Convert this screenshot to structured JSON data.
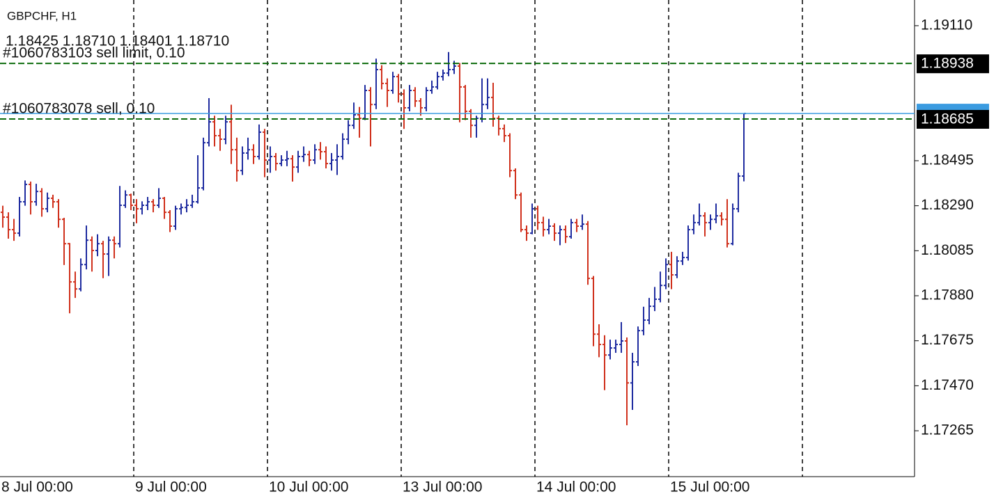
{
  "chart_data": {
    "type": "ohlc",
    "title": "GBPCHF, H1",
    "subtitle": "1.18425 1.18710 1.18401 1.18710",
    "up_color": "#1f2ca0",
    "down_color": "#d0301c",
    "bid_color": "#3b9be0",
    "order_color": "#0b6b0b",
    "ylim": [
      1.17056,
      1.19227
    ],
    "yticks": [
      {
        "value": 1.1911,
        "label": "1.19110"
      },
      1.18495,
      {
        "value": 1.1829,
        "label": "1.18290"
      },
      1.18085,
      {
        "value": 1.1788,
        "label": "1.17880"
      },
      1.17675,
      {
        "value": 1.1747,
        "label": "1.17470"
      },
      1.17265
    ],
    "orders": [
      {
        "label": "#1060783103 sell limit, 0.10",
        "price": 1.18938
      },
      {
        "label": "#1060783078 sell, 0.10",
        "price": 1.18685
      }
    ],
    "categories": [
      "8 Jul 00:00",
      null,
      null,
      null,
      null,
      null,
      null,
      null,
      null,
      null,
      null,
      null,
      null,
      null,
      null,
      null,
      null,
      null,
      null,
      null,
      null,
      null,
      null,
      null,
      "9 Jul 00:00",
      null,
      null,
      null,
      null,
      null,
      null,
      null,
      null,
      null,
      null,
      null,
      null,
      null,
      null,
      null,
      null,
      null,
      null,
      null,
      null,
      null,
      null,
      null,
      "10 Jul 00:00",
      null,
      null,
      null,
      null,
      null,
      null,
      null,
      null,
      null,
      null,
      null,
      null,
      null,
      null,
      null,
      null,
      null,
      null,
      null,
      null,
      null,
      null,
      null,
      "13 Jul 00:00",
      null,
      null,
      null,
      null,
      null,
      null,
      null,
      null,
      null,
      null,
      null,
      null,
      null,
      null,
      null,
      null,
      null,
      null,
      null,
      null,
      null,
      null,
      null,
      "14 Jul 00:00",
      null,
      null,
      null,
      null,
      null,
      null,
      null,
      null,
      null,
      null,
      null,
      null,
      null,
      null,
      null,
      null,
      null,
      null,
      null,
      null,
      null,
      null,
      null,
      "15 Jul 00:00",
      null,
      null,
      null,
      null,
      null,
      null,
      null,
      null,
      null,
      null,
      null,
      null,
      null
    ],
    "open": [
      1.1826,
      1.18238,
      1.18181,
      1.18165,
      1.18308,
      1.18387,
      1.18308,
      1.18355,
      1.18276,
      1.18324,
      1.18308,
      1.18228,
      1.18117,
      1.17943,
      1.17911,
      1.18022,
      1.18133,
      1.18086,
      1.18117,
      1.1807,
      1.18133,
      1.18117,
      1.18292,
      1.18339,
      1.18292,
      1.18276,
      1.18292,
      1.18308,
      1.18292,
      1.18324,
      1.1826,
      1.18197,
      1.18276,
      1.18282,
      1.18292,
      1.18308,
      1.18371,
      1.18577,
      1.18672,
      1.18609,
      1.18593,
      1.18672,
      1.18545,
      1.1845,
      1.1853,
      1.18545,
      1.18514,
      1.18625,
      1.18498,
      1.18514,
      1.18482,
      1.18498,
      1.18504,
      1.18466,
      1.18514,
      1.18523,
      1.18498,
      1.18545,
      1.18536,
      1.18482,
      1.18498,
      1.18514,
      1.18593,
      1.18656,
      1.18704,
      1.18688,
      1.18815,
      1.18751,
      1.1891,
      1.18847,
      1.18815,
      1.18878,
      1.18799,
      1.18736,
      1.18815,
      1.18767,
      1.18736,
      1.18815,
      1.18831,
      1.18878,
      1.18894,
      1.1891,
      1.18926,
      1.18831,
      1.1872,
      1.18656,
      1.18688,
      1.18751,
      1.18783,
      1.18688,
      1.18641,
      1.18609,
      1.1845,
      1.18339,
      1.18181,
      1.18165,
      1.18276,
      1.18213,
      1.18181,
      1.18197,
      1.18165,
      1.18181,
      1.18149,
      1.18213,
      1.18197,
      1.18206,
      1.17959,
      1.17705,
      1.17658,
      1.1761,
      1.17642,
      1.17658,
      1.17674,
      1.17483,
      1.17579,
      1.17721,
      1.17769,
      1.17832,
      1.17864,
      1.17927,
      1.18022,
      1.17975,
      1.18038,
      1.18054,
      1.18181,
      1.18213,
      1.18244,
      1.18213,
      1.18228,
      1.18244,
      1.18228,
      1.18117,
      1.18276,
      1.18425
    ],
    "high": [
      1.1829,
      1.1826,
      1.1823,
      1.1833,
      1.18405,
      1.184,
      1.1839,
      1.1837,
      1.1835,
      1.1834,
      1.1832,
      1.18235,
      1.1812,
      1.1799,
      1.1805,
      1.182,
      1.1815,
      1.1816,
      1.1813,
      1.1815,
      1.1815,
      1.1838,
      1.1836,
      1.18345,
      1.1832,
      1.1831,
      1.1833,
      1.1832,
      1.1837,
      1.1833,
      1.1827,
      1.1829,
      1.183,
      1.1832,
      1.1834,
      1.1852,
      1.186,
      1.1878,
      1.187,
      1.1864,
      1.187,
      1.1875,
      1.186,
      1.1856,
      1.186,
      1.1857,
      1.1866,
      1.1864,
      1.1856,
      1.1853,
      1.1852,
      1.1854,
      1.1852,
      1.1854,
      1.1856,
      1.1854,
      1.1857,
      1.1858,
      1.1856,
      1.1853,
      1.1857,
      1.1862,
      1.1868,
      1.1876,
      1.1874,
      1.1884,
      1.1883,
      1.1896,
      1.1893,
      1.1887,
      1.189,
      1.1889,
      1.1882,
      1.1884,
      1.1883,
      1.1878,
      1.1883,
      1.1886,
      1.189,
      1.1891,
      1.1899,
      1.1895,
      1.1894,
      1.1884,
      1.1873,
      1.187,
      1.1887,
      1.1887,
      1.1885,
      1.187,
      1.1866,
      1.1862,
      1.1846,
      1.1835,
      1.182,
      1.183,
      1.1829,
      1.1824,
      1.1823,
      1.1821,
      1.182,
      1.182,
      1.1823,
      1.1823,
      1.1825,
      1.1822,
      1.1797,
      1.1775,
      1.177,
      1.1768,
      1.1768,
      1.1776,
      1.1769,
      1.1762,
      1.1774,
      1.1783,
      1.1787,
      1.1792,
      1.1799,
      1.1805,
      1.1808,
      1.1806,
      1.1808,
      1.182,
      1.1825,
      1.183,
      1.1826,
      1.1825,
      1.183,
      1.1826,
      1.1832,
      1.183,
      1.1844,
      1.1871
    ],
    "low": [
      1.1819,
      1.1814,
      1.1813,
      1.1815,
      1.1829,
      1.1825,
      1.1829,
      1.1824,
      1.1826,
      1.1828,
      1.1819,
      1.1802,
      1.178,
      1.1787,
      1.179,
      1.18,
      1.1799,
      1.1806,
      1.1796,
      1.1797,
      1.1805,
      1.181,
      1.1828,
      1.1827,
      1.1821,
      1.1825,
      1.1827,
      1.1826,
      1.1828,
      1.1823,
      1.1817,
      1.1818,
      1.1825,
      1.1826,
      1.1828,
      1.183,
      1.1836,
      1.1856,
      1.1856,
      1.1854,
      1.1857,
      1.1848,
      1.184,
      1.1843,
      1.185,
      1.1848,
      1.185,
      1.1842,
      1.1844,
      1.1845,
      1.1847,
      1.1847,
      1.184,
      1.1844,
      1.1849,
      1.1847,
      1.1848,
      1.185,
      1.1846,
      1.1845,
      1.1843,
      1.185,
      1.1857,
      1.1864,
      1.186,
      1.1868,
      1.1856,
      1.1873,
      1.1882,
      1.1874,
      1.188,
      1.1876,
      1.1864,
      1.1872,
      1.1874,
      1.187,
      1.1872,
      1.188,
      1.1882,
      1.1886,
      1.1888,
      1.1889,
      1.1867,
      1.1868,
      1.186,
      1.186,
      1.1867,
      1.1873,
      1.1865,
      1.1861,
      1.1858,
      1.1842,
      1.1832,
      1.1817,
      1.1813,
      1.1816,
      1.1818,
      1.1815,
      1.1816,
      1.1813,
      1.1811,
      1.1812,
      1.1814,
      1.1817,
      1.1818,
      1.1793,
      1.1765,
      1.176,
      1.1745,
      1.1759,
      1.1762,
      1.1762,
      1.1729,
      1.1736,
      1.1756,
      1.177,
      1.1775,
      1.1781,
      1.1785,
      1.1791,
      1.1791,
      1.1796,
      1.1802,
      1.1804,
      1.1816,
      1.182,
      1.1815,
      1.1818,
      1.1821,
      1.182,
      1.181,
      1.1811,
      1.1826,
      1.18401
    ],
    "close": [
      1.18238,
      1.18181,
      1.18165,
      1.18308,
      1.18387,
      1.18308,
      1.18355,
      1.18276,
      1.18324,
      1.18308,
      1.18228,
      1.18117,
      1.17943,
      1.17911,
      1.18022,
      1.18133,
      1.18086,
      1.18117,
      1.1807,
      1.18133,
      1.18117,
      1.18292,
      1.18339,
      1.18292,
      1.18276,
      1.18292,
      1.18308,
      1.18292,
      1.18324,
      1.1826,
      1.18197,
      1.18276,
      1.18282,
      1.18292,
      1.18308,
      1.18371,
      1.18577,
      1.18672,
      1.18609,
      1.18593,
      1.18672,
      1.18545,
      1.1845,
      1.1853,
      1.18545,
      1.18514,
      1.18625,
      1.18498,
      1.18514,
      1.18482,
      1.18498,
      1.18504,
      1.18466,
      1.18514,
      1.18523,
      1.18498,
      1.18545,
      1.18536,
      1.18482,
      1.18498,
      1.18514,
      1.18593,
      1.18656,
      1.18704,
      1.18688,
      1.18815,
      1.18751,
      1.1891,
      1.18847,
      1.18815,
      1.18878,
      1.18799,
      1.18736,
      1.18815,
      1.18767,
      1.18736,
      1.18815,
      1.18831,
      1.18878,
      1.18894,
      1.1891,
      1.18926,
      1.18831,
      1.1872,
      1.18656,
      1.18688,
      1.18751,
      1.18783,
      1.18688,
      1.18641,
      1.18609,
      1.1845,
      1.18339,
      1.18181,
      1.18165,
      1.18276,
      1.18213,
      1.18181,
      1.18197,
      1.18165,
      1.18181,
      1.18149,
      1.18213,
      1.18197,
      1.18206,
      1.17959,
      1.17705,
      1.17658,
      1.1761,
      1.17642,
      1.17658,
      1.17674,
      1.17483,
      1.17579,
      1.17721,
      1.17769,
      1.17832,
      1.17864,
      1.17927,
      1.18022,
      1.17975,
      1.18038,
      1.18054,
      1.18181,
      1.18213,
      1.18244,
      1.18213,
      1.18228,
      1.18244,
      1.18228,
      1.18117,
      1.18276,
      1.18425,
      1.1871
    ]
  }
}
